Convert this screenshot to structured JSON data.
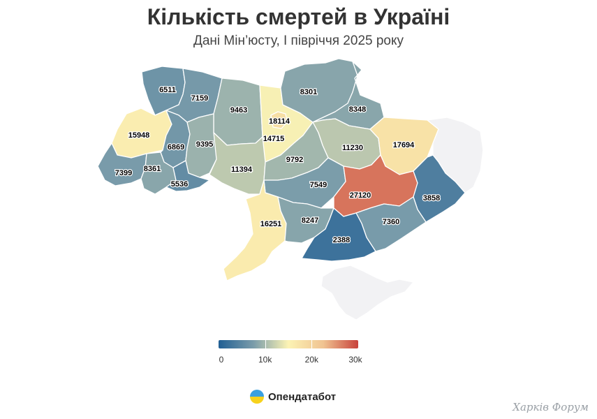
{
  "title": "Кількість смертей в Україні",
  "subtitle": "Дані Мін’юсту, І півріччя 2025 року",
  "colors": {
    "scale": [
      "#215f94",
      "#7a9caa",
      "#fcf3b4",
      "#f0c391",
      "#c8423b"
    ],
    "no_data": "#f2f2f4"
  },
  "legend": {
    "min": 0,
    "max": 30000,
    "ticks": [
      "0",
      "10k",
      "20k",
      "30k"
    ]
  },
  "map_data": {
    "type": "choropleth",
    "metric": "deaths",
    "regions": [
      {
        "id": "volyn",
        "value": 6511
      },
      {
        "id": "rivne",
        "value": 7159
      },
      {
        "id": "zhytomyr",
        "value": 9463
      },
      {
        "id": "kyiv-oblast",
        "value": 14715
      },
      {
        "id": "kyiv-city",
        "value": 18114
      },
      {
        "id": "chernihiv",
        "value": 8301
      },
      {
        "id": "sumy",
        "value": 8348
      },
      {
        "id": "lviv",
        "value": 15948
      },
      {
        "id": "ternopil",
        "value": 6869
      },
      {
        "id": "khmelnytskyi",
        "value": 9395
      },
      {
        "id": "poltava",
        "value": 11230
      },
      {
        "id": "kharkiv",
        "value": 17694
      },
      {
        "id": "zakarpattia",
        "value": 7399
      },
      {
        "id": "ivano-frankivsk",
        "value": 8361
      },
      {
        "id": "chernivtsi",
        "value": 5536
      },
      {
        "id": "vinnytsia",
        "value": 11394
      },
      {
        "id": "cherkasy",
        "value": 9792
      },
      {
        "id": "kirovohrad",
        "value": 7549
      },
      {
        "id": "dnipropetrovsk",
        "value": 27120
      },
      {
        "id": "luhansk",
        "value": null
      },
      {
        "id": "donetsk",
        "value": 3858
      },
      {
        "id": "zaporizhzhia",
        "value": 7360
      },
      {
        "id": "odesa",
        "value": 16251
      },
      {
        "id": "mykolaiv",
        "value": 8247
      },
      {
        "id": "kherson",
        "value": 2388
      },
      {
        "id": "crimea",
        "value": null
      }
    ]
  },
  "brand": {
    "name": "Опендатабот",
    "logo_icon": "opendatabot-logo-icon"
  },
  "watermark": "Харків Форум"
}
